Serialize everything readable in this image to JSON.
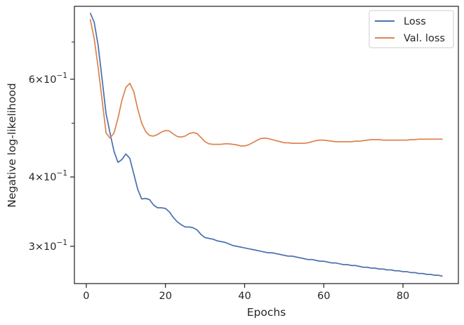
{
  "chart_data": {
    "type": "line",
    "xlabel": "Epochs",
    "ylabel": "Negative log-likelihood",
    "xlim": [
      -3,
      94
    ],
    "ylim": [
      0.257,
      0.812
    ],
    "yscale": "log",
    "grid": false,
    "legend_position": "top-right",
    "x_ticks": [
      0,
      20,
      40,
      60,
      80
    ],
    "y_major_ticks": [
      {
        "value": 0.3,
        "mantissa": "3",
        "base": "10",
        "exp": "−1"
      },
      {
        "value": 0.4,
        "mantissa": "4",
        "base": "10",
        "exp": "−1"
      },
      {
        "value": 0.6,
        "mantissa": "6",
        "base": "10",
        "exp": "−1"
      }
    ],
    "y_minor_ticks": [
      0.5,
      0.7
    ],
    "series": [
      {
        "name": "Loss",
        "color": "#4c72b0",
        "x": [
          1,
          2,
          3,
          4,
          5,
          6,
          7,
          8,
          9,
          10,
          11,
          12,
          13,
          14,
          15,
          16,
          17,
          18,
          19,
          20,
          21,
          22,
          23,
          24,
          25,
          26,
          27,
          28,
          29,
          30,
          31,
          32,
          33,
          34,
          35,
          36,
          37,
          38,
          39,
          40,
          41,
          42,
          43,
          44,
          45,
          46,
          47,
          48,
          49,
          50,
          51,
          52,
          53,
          54,
          55,
          56,
          57,
          58,
          59,
          60,
          61,
          62,
          63,
          64,
          65,
          66,
          67,
          68,
          69,
          70,
          71,
          72,
          73,
          74,
          75,
          76,
          77,
          78,
          79,
          80,
          81,
          82,
          83,
          84,
          85,
          86,
          87,
          88,
          89,
          90
        ],
        "values": [
          0.79,
          0.76,
          0.69,
          0.6,
          0.52,
          0.48,
          0.445,
          0.425,
          0.43,
          0.44,
          0.432,
          0.405,
          0.38,
          0.365,
          0.366,
          0.364,
          0.356,
          0.352,
          0.352,
          0.351,
          0.346,
          0.338,
          0.332,
          0.328,
          0.325,
          0.325,
          0.324,
          0.321,
          0.315,
          0.311,
          0.31,
          0.309,
          0.307,
          0.306,
          0.305,
          0.303,
          0.301,
          0.3,
          0.299,
          0.298,
          0.297,
          0.296,
          0.295,
          0.294,
          0.293,
          0.292,
          0.292,
          0.291,
          0.29,
          0.289,
          0.288,
          0.288,
          0.287,
          0.286,
          0.285,
          0.284,
          0.284,
          0.283,
          0.282,
          0.282,
          0.281,
          0.28,
          0.28,
          0.279,
          0.278,
          0.278,
          0.277,
          0.277,
          0.276,
          0.275,
          0.275,
          0.274,
          0.274,
          0.273,
          0.273,
          0.272,
          0.272,
          0.271,
          0.271,
          0.27,
          0.27,
          0.269,
          0.269,
          0.268,
          0.268,
          0.267,
          0.267,
          0.266,
          0.266,
          0.265
        ]
      },
      {
        "name": "Val. loss",
        "color": "#dd8452",
        "x": [
          1,
          2,
          3,
          4,
          5,
          6,
          7,
          8,
          9,
          10,
          11,
          12,
          13,
          14,
          15,
          16,
          17,
          18,
          19,
          20,
          21,
          22,
          23,
          24,
          25,
          26,
          27,
          28,
          29,
          30,
          31,
          32,
          33,
          34,
          35,
          36,
          37,
          38,
          39,
          40,
          41,
          42,
          43,
          44,
          45,
          46,
          47,
          48,
          49,
          50,
          51,
          52,
          53,
          54,
          55,
          56,
          57,
          58,
          59,
          60,
          61,
          62,
          63,
          64,
          65,
          66,
          67,
          68,
          69,
          70,
          71,
          72,
          73,
          74,
          75,
          76,
          77,
          78,
          79,
          80,
          81,
          82,
          83,
          84,
          85,
          86,
          87,
          88,
          89,
          90
        ],
        "values": [
          0.77,
          0.71,
          0.63,
          0.55,
          0.48,
          0.47,
          0.48,
          0.51,
          0.55,
          0.58,
          0.59,
          0.57,
          0.53,
          0.5,
          0.483,
          0.475,
          0.474,
          0.477,
          0.482,
          0.485,
          0.484,
          0.478,
          0.473,
          0.472,
          0.474,
          0.479,
          0.481,
          0.479,
          0.471,
          0.463,
          0.459,
          0.458,
          0.458,
          0.458,
          0.459,
          0.459,
          0.458,
          0.457,
          0.455,
          0.455,
          0.457,
          0.461,
          0.465,
          0.469,
          0.47,
          0.469,
          0.467,
          0.465,
          0.463,
          0.461,
          0.461,
          0.46,
          0.46,
          0.46,
          0.46,
          0.461,
          0.463,
          0.465,
          0.466,
          0.466,
          0.465,
          0.464,
          0.463,
          0.463,
          0.463,
          0.463,
          0.463,
          0.464,
          0.464,
          0.465,
          0.466,
          0.467,
          0.467,
          0.467,
          0.466,
          0.466,
          0.466,
          0.466,
          0.466,
          0.466,
          0.466,
          0.467,
          0.467,
          0.468,
          0.468,
          0.468,
          0.468,
          0.468,
          0.468,
          0.468
        ]
      }
    ]
  }
}
